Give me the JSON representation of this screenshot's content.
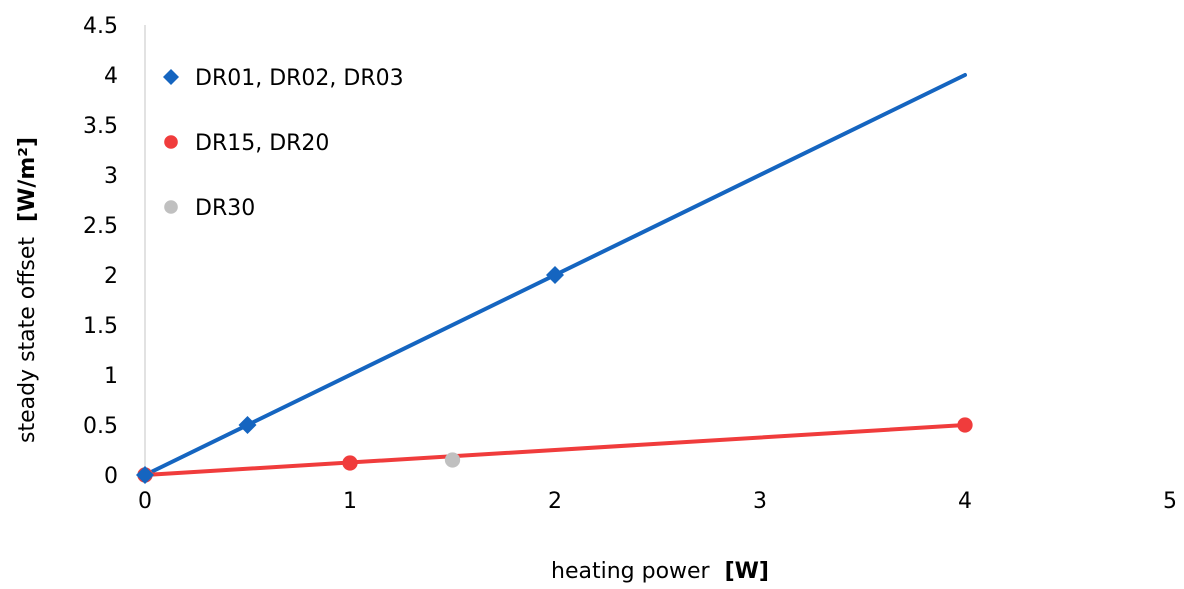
{
  "chart_data": {
    "type": "scatter",
    "title": "",
    "xlabel": "heating power",
    "xlabel_unit": "[W]",
    "ylabel": "steady state offset",
    "ylabel_unit": "[W/m²]",
    "xlim": [
      0,
      5
    ],
    "ylim": [
      0,
      4.5
    ],
    "x_ticks": [
      "0",
      "1",
      "2",
      "3",
      "4",
      "5"
    ],
    "y_ticks": [
      "0",
      "0.5",
      "1",
      "1.5",
      "2",
      "2.5",
      "3",
      "3.5",
      "4",
      "4.5"
    ],
    "grid": false,
    "legend_position": "top-left",
    "series": [
      {
        "name": "DR01, DR02, DR03",
        "color": "#1565C0",
        "marker": "diamond",
        "points": [
          [
            0,
            0
          ],
          [
            0.5,
            0.5
          ],
          [
            2,
            2
          ]
        ],
        "line": [
          [
            0,
            0
          ],
          [
            4,
            4
          ]
        ]
      },
      {
        "name": "DR15, DR20",
        "color": "#F03C3C",
        "marker": "circle",
        "points": [
          [
            0,
            0
          ],
          [
            1,
            0.12
          ],
          [
            4,
            0.5
          ]
        ],
        "line": [
          [
            0,
            0
          ],
          [
            4,
            0.5
          ]
        ]
      },
      {
        "name": "DR30",
        "color": "#C0C0C0",
        "marker": "circle",
        "points": [
          [
            0,
            0
          ],
          [
            1.5,
            0.15
          ]
        ],
        "line": null
      }
    ]
  }
}
